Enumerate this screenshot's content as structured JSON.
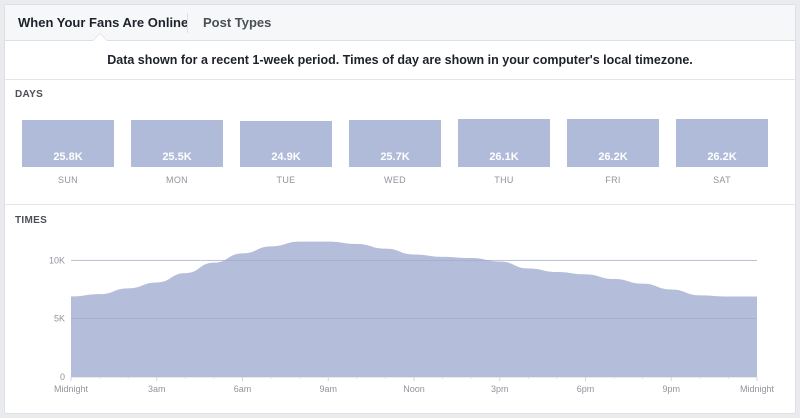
{
  "tabs": [
    {
      "label": "When Your Fans Are Online",
      "active": true
    },
    {
      "label": "Post Types",
      "active": false
    }
  ],
  "notice": "Data shown for a recent 1-week period. Times of day are shown in your computer's local timezone.",
  "days_section": {
    "title": "DAYS"
  },
  "times_section": {
    "title": "TIMES"
  },
  "colors": {
    "bar": "#b0bbd9",
    "area": "#b0bbd9",
    "grid": "#e9ebee",
    "tick_text": "#90949c"
  },
  "chart_data": [
    {
      "type": "bar",
      "title": "DAYS",
      "categories": [
        "SUN",
        "MON",
        "TUE",
        "WED",
        "THU",
        "FRI",
        "SAT"
      ],
      "values": [
        25800,
        25500,
        24900,
        25700,
        26100,
        26200,
        26200
      ],
      "value_labels": [
        "25.8K",
        "25.5K",
        "24.9K",
        "25.7K",
        "26.1K",
        "26.2K",
        "26.2K"
      ]
    },
    {
      "type": "area",
      "title": "TIMES",
      "x": [
        0,
        1,
        2,
        3,
        4,
        5,
        6,
        7,
        8,
        9,
        10,
        11,
        12,
        13,
        14,
        15,
        16,
        17,
        18,
        19,
        20,
        21,
        22,
        23,
        24
      ],
      "values": [
        6900,
        7100,
        7600,
        8100,
        8900,
        9800,
        10600,
        11200,
        11600,
        11600,
        11400,
        11000,
        10500,
        10300,
        10200,
        9900,
        9300,
        9000,
        8800,
        8400,
        8000,
        7500,
        7000,
        6900,
        6900
      ],
      "ylim": [
        0,
        12000
      ],
      "y_ticks": [
        0,
        5000,
        10000
      ],
      "y_tick_labels": [
        "0",
        "5K",
        "10K"
      ],
      "x_tick_labels": [
        "Midnight",
        "3am",
        "6am",
        "9am",
        "Noon",
        "3pm",
        "6pm",
        "9pm",
        "Midnight"
      ],
      "grid": true
    }
  ]
}
